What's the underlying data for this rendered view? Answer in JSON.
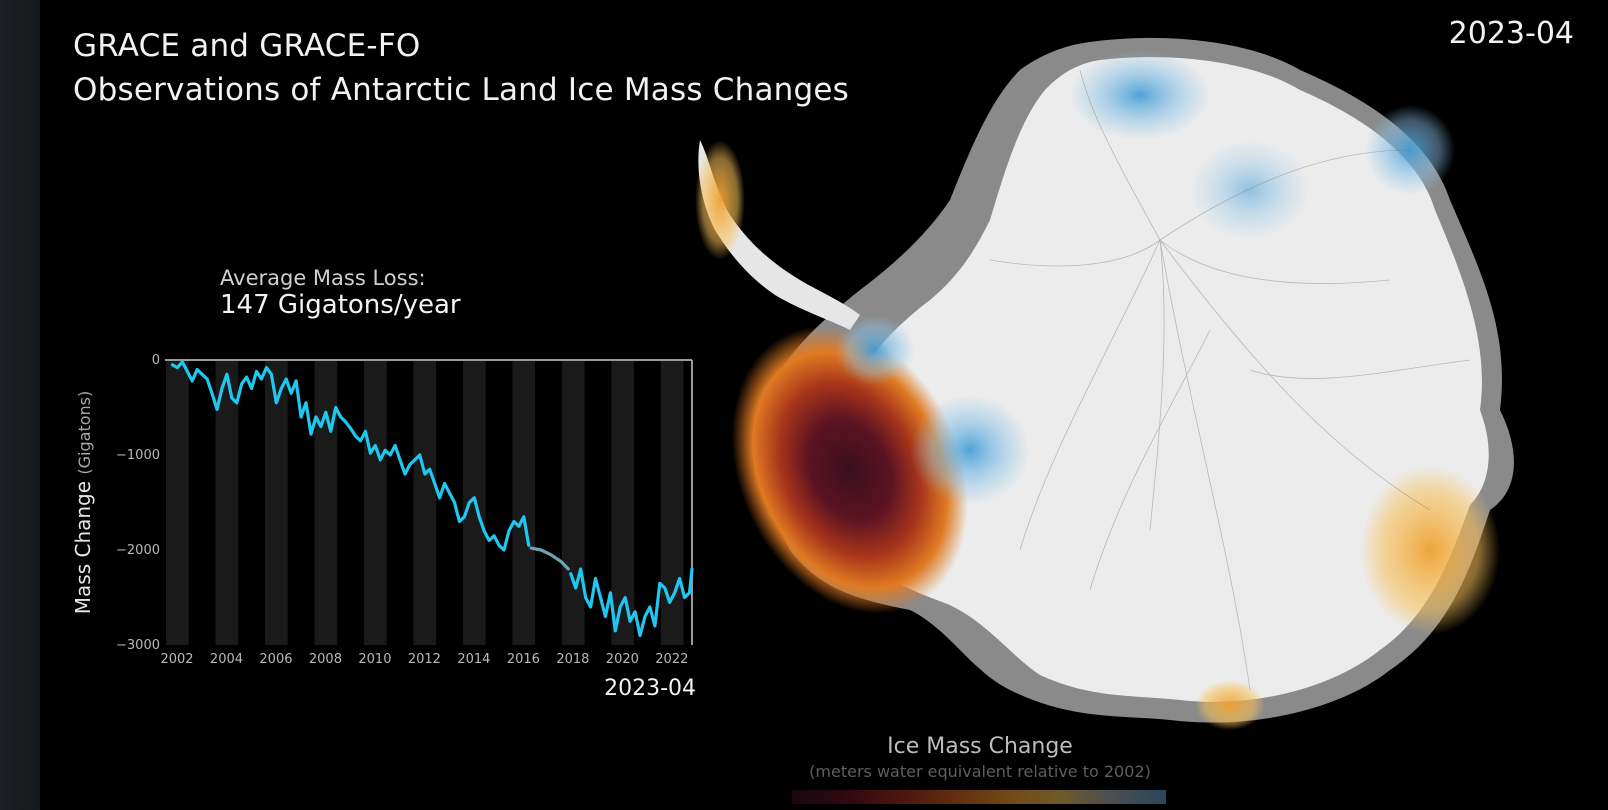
{
  "title": {
    "line1": "GRACE and GRACE-FO",
    "line2": "Observations of Antarctic Land Ice Mass Changes"
  },
  "current_date": "2023-04",
  "summary": {
    "label": "Average Mass Loss:",
    "value": "147 Gigatons/year"
  },
  "legend": {
    "title": "Ice Mass Change",
    "subtitle": "(meters water equivalent relative to 2002)"
  },
  "colors": {
    "series": "#1ec8f0",
    "gap_series": "#6fa0b4",
    "band": "#1a1a1a",
    "axis": "#9a9a9a",
    "tick_text": "#b8b8b8"
  },
  "chart_data": {
    "type": "line",
    "ylabel": "Mass Change",
    "ylabel_unit": "(Gigatons)",
    "xlabel": "",
    "ylim": [
      -3000,
      0
    ],
    "xlim": [
      2002,
      2023.3
    ],
    "yticks": [
      0,
      -1000,
      -2000,
      -3000
    ],
    "ytick_labels": [
      "0",
      "−1000",
      "−2000",
      "−3000"
    ],
    "xticks": [
      "2002",
      "2004",
      "2006",
      "2008",
      "2010",
      "2012",
      "2014",
      "2016",
      "2018",
      "2020",
      "2022"
    ],
    "current_label": "2023-04",
    "series": [
      {
        "x": [
          2002.3,
          2002.5,
          2002.7,
          2002.9,
          2003.1,
          2003.3,
          2003.5,
          2003.7,
          2003.9,
          2004.1,
          2004.3,
          2004.5,
          2004.7,
          2004.9,
          2005.1,
          2005.3,
          2005.5,
          2005.7,
          2005.9,
          2006.1,
          2006.3,
          2006.5,
          2006.7,
          2006.9,
          2007.1,
          2007.3,
          2007.5,
          2007.7,
          2007.9,
          2008.1,
          2008.3,
          2008.5,
          2008.7,
          2008.9,
          2009.1,
          2009.3,
          2009.5,
          2009.7,
          2009.9,
          2010.1,
          2010.3,
          2010.5,
          2010.7,
          2010.9,
          2011.1,
          2011.3,
          2011.5,
          2011.7,
          2011.9,
          2012.1,
          2012.3,
          2012.5,
          2012.7,
          2012.9,
          2013.1,
          2013.3,
          2013.5,
          2013.7,
          2013.9,
          2014.1,
          2014.3,
          2014.5,
          2014.7,
          2014.9,
          2015.1,
          2015.3,
          2015.5,
          2015.7,
          2015.9,
          2016.1,
          2016.3,
          2016.5,
          2016.7
        ],
        "y": [
          -50,
          -80,
          -20,
          -120,
          -220,
          -100,
          -150,
          -200,
          -350,
          -520,
          -300,
          -150,
          -400,
          -450,
          -250,
          -180,
          -300,
          -120,
          -200,
          -80,
          -150,
          -450,
          -300,
          -200,
          -350,
          -220,
          -600,
          -450,
          -780,
          -600,
          -700,
          -550,
          -750,
          -500,
          -600,
          -650,
          -720,
          -800,
          -850,
          -750,
          -980,
          -900,
          -1050,
          -950,
          -1000,
          -900,
          -1050,
          -1200,
          -1100,
          -1050,
          -1000,
          -1200,
          -1150,
          -1300,
          -1450,
          -1300,
          -1400,
          -1500,
          -1700,
          -1650,
          -1500,
          -1450,
          -1650,
          -1800,
          -1900,
          -1850,
          -1950,
          -2000,
          -1800,
          -1700,
          -1750,
          -1650,
          -1950
        ]
      },
      {
        "x": [
          2016.8,
          2017.2,
          2017.6,
          2018.0,
          2018.3
        ],
        "y": [
          -1980,
          -2000,
          -2050,
          -2120,
          -2200
        ]
      },
      {
        "x": [
          2018.4,
          2018.6,
          2018.8,
          2019.0,
          2019.2,
          2019.4,
          2019.6,
          2019.8,
          2020.0,
          2020.2,
          2020.4,
          2020.6,
          2020.8,
          2021.0,
          2021.2,
          2021.4,
          2021.6,
          2021.8,
          2022.0,
          2022.2,
          2022.4,
          2022.6,
          2022.8,
          2023.0,
          2023.2,
          2023.3
        ],
        "y": [
          -2250,
          -2400,
          -2200,
          -2500,
          -2600,
          -2300,
          -2500,
          -2700,
          -2450,
          -2850,
          -2600,
          -2500,
          -2750,
          -2650,
          -2900,
          -2700,
          -2600,
          -2800,
          -2350,
          -2400,
          -2550,
          -2450,
          -2300,
          -2500,
          -2450,
          -2200
        ]
      }
    ]
  }
}
